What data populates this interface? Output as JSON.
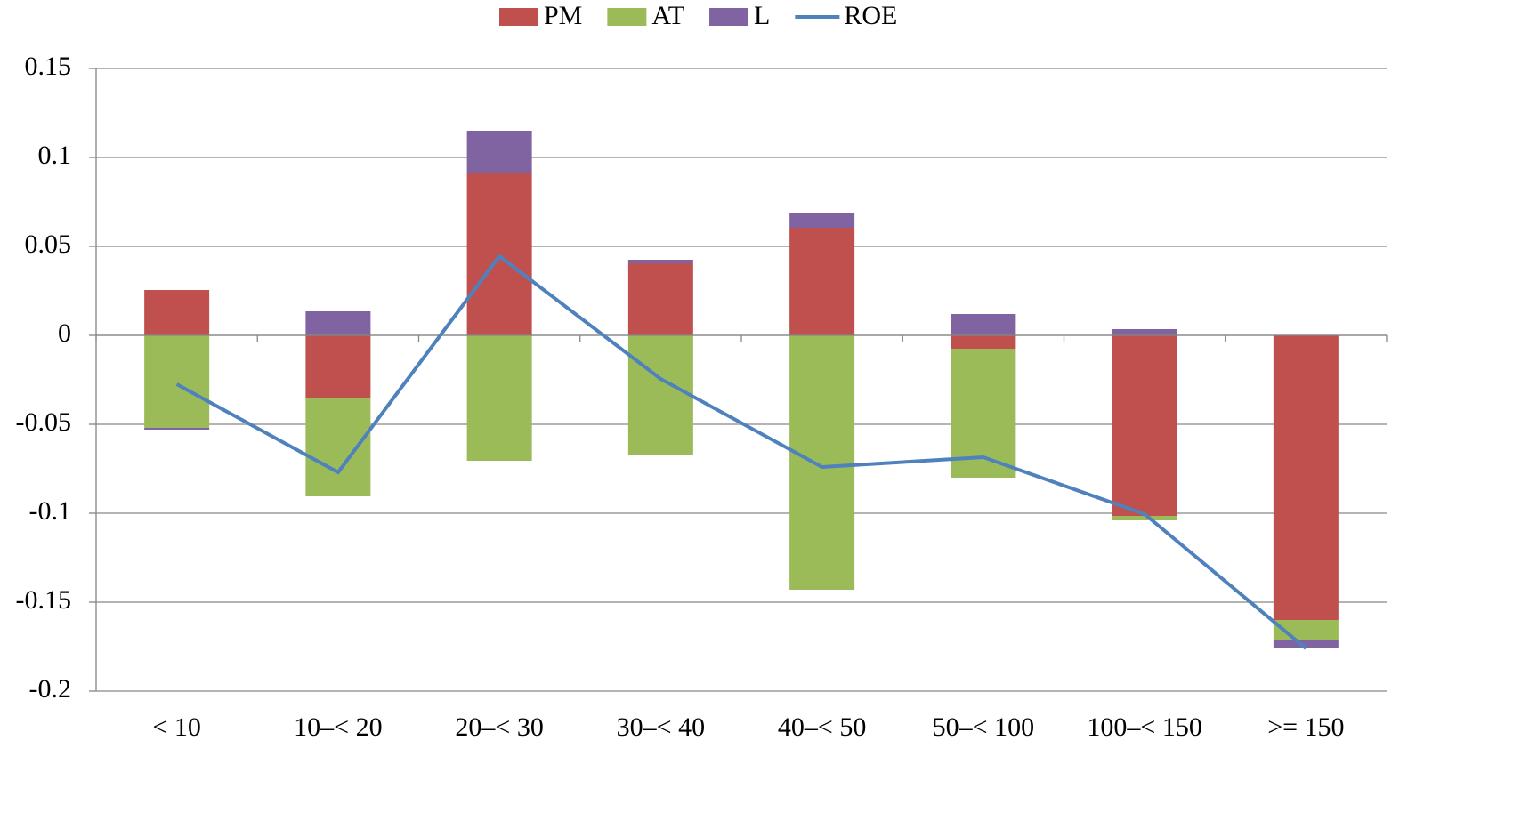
{
  "chart_data": {
    "type": "bar",
    "categories": [
      "< 10",
      "10–< 20",
      "20–< 30",
      "30–< 40",
      "40–< 50",
      "50–< 100",
      "100–< 150",
      ">= 150"
    ],
    "series": [
      {
        "name": "PM",
        "color": "#c0504d",
        "values": [
          0.0255,
          -0.035,
          0.091,
          0.0405,
          0.0605,
          -0.0075,
          -0.1015,
          -0.16
        ]
      },
      {
        "name": "AT",
        "color": "#9bbb59",
        "values": [
          -0.052,
          -0.0555,
          -0.0705,
          -0.067,
          -0.143,
          -0.0725,
          -0.0025,
          -0.0115
        ]
      },
      {
        "name": "L",
        "color": "#8064a2",
        "values": [
          -0.001,
          0.0135,
          0.024,
          0.002,
          0.0085,
          0.012,
          0.0035,
          -0.0045
        ]
      },
      {
        "name": "ROE",
        "type": "line",
        "color": "#4f81bd",
        "values": [
          -0.0275,
          -0.077,
          0.0445,
          -0.0245,
          -0.074,
          -0.0685,
          -0.1005,
          -0.176
        ]
      }
    ],
    "ylim": [
      -0.2,
      0.15
    ],
    "yticks": [
      -0.2,
      -0.15,
      -0.1,
      -0.05,
      0,
      0.05,
      0.1,
      0.15
    ],
    "grid": true,
    "stacked": true,
    "legend": "top"
  }
}
